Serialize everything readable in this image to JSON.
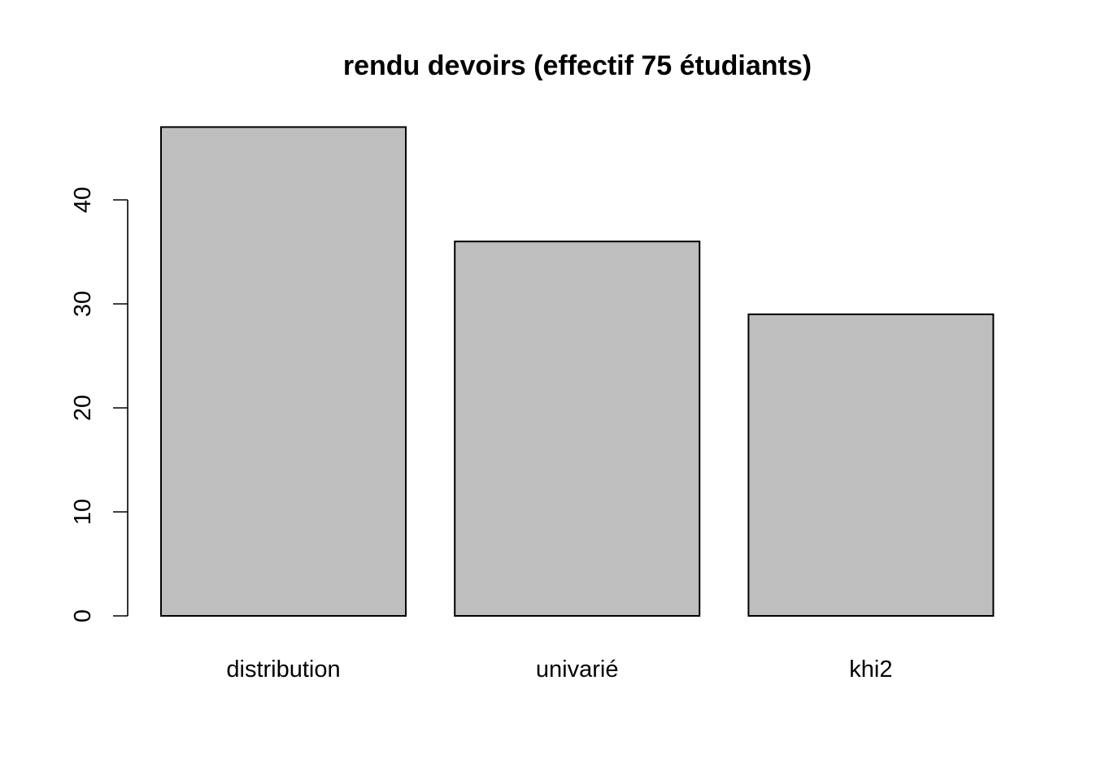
{
  "chart_data": {
    "type": "bar",
    "title": "rendu devoirs (effectif 75 étudiants)",
    "xlabel": "",
    "ylabel": "",
    "categories": [
      "distribution",
      "univarié",
      "khi2"
    ],
    "values": [
      47,
      36,
      29
    ],
    "ylim": [
      0,
      47
    ],
    "yticks": [
      0,
      10,
      20,
      30,
      40
    ],
    "bar_color": "#bebebe",
    "grid": false,
    "legend": "none"
  }
}
